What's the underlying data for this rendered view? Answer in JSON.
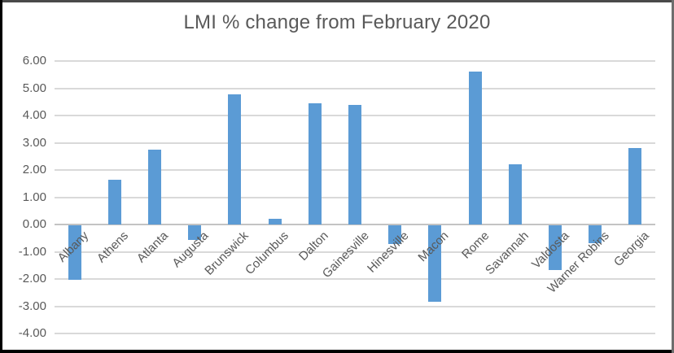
{
  "chart_data": {
    "type": "bar",
    "title": "LMI % change from February 2020",
    "categories": [
      "Albany",
      "Athens",
      "Atlanta",
      "Augusta",
      "Brunswick",
      "Columbus",
      "Dalton",
      "Gainesville",
      "Hinesville",
      "Macon",
      "Rome",
      "Savannah",
      "Valdosta",
      "Warner Robins",
      "Georgia"
    ],
    "values": [
      -2.0,
      1.65,
      2.75,
      -0.55,
      4.78,
      0.2,
      4.45,
      4.4,
      -0.7,
      -2.8,
      5.6,
      2.2,
      -1.65,
      -0.65,
      2.8
    ],
    "xlabel": "",
    "ylabel": "",
    "ylim": [
      -4,
      6
    ],
    "ytick_step": 1,
    "ytick_labels": [
      "6.00",
      "5.00",
      "4.00",
      "3.00",
      "2.00",
      "1.00",
      "0.00",
      "-1.00",
      "-2.00",
      "-3.00",
      "-4.00"
    ],
    "grid": true,
    "legend": "none",
    "bar_color": "#5B9BD5",
    "text_color": "#595959",
    "gridline_color": "#D9D9D9",
    "zero_axis_color": "#C3C3C3",
    "category_label_rotation_deg": -45
  }
}
